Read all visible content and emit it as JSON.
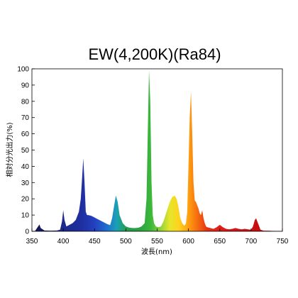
{
  "chart_data": {
    "type": "area",
    "title": "EW(4,200K)(Ra84)",
    "xlabel": "波長(nm)",
    "ylabel": "相対分光出力(%)",
    "xlim": [
      350,
      750
    ],
    "ylim": [
      0,
      100
    ],
    "xticks": [
      350,
      400,
      450,
      500,
      550,
      600,
      650,
      700,
      750
    ],
    "yticks": [
      0,
      10,
      20,
      30,
      40,
      50,
      60,
      70,
      80,
      90,
      100
    ],
    "grid": false,
    "color_mode": "wavelength-spectrum",
    "x": [
      350,
      355,
      359,
      362,
      364,
      370,
      380,
      390,
      395,
      398,
      400,
      402,
      405,
      410,
      415,
      420,
      425,
      428,
      430,
      432,
      434,
      436,
      438,
      440,
      445,
      450,
      455,
      460,
      465,
      470,
      475,
      478,
      481,
      484,
      487,
      490,
      495,
      500,
      505,
      510,
      515,
      520,
      525,
      530,
      533,
      535,
      537,
      539,
      541,
      543,
      545,
      548,
      552,
      556,
      560,
      565,
      570,
      574,
      578,
      581,
      584,
      587,
      590,
      592,
      594,
      596,
      598,
      600,
      602,
      604,
      606,
      608,
      610,
      612,
      614,
      616,
      618,
      620,
      622,
      624,
      626,
      628,
      630,
      635,
      640,
      645,
      650,
      655,
      660,
      665,
      670,
      675,
      680,
      685,
      690,
      695,
      700,
      703,
      706,
      708,
      710,
      715,
      720,
      730,
      740,
      750
    ],
    "y": [
      0,
      0.2,
      2.5,
      4.2,
      2,
      0.5,
      0.4,
      0.5,
      1,
      6,
      13,
      7,
      3,
      4,
      5,
      7,
      12,
      20,
      32,
      45,
      30,
      12,
      10,
      10,
      9.5,
      8.5,
      7.5,
      6.5,
      5.5,
      4.5,
      3.8,
      8,
      15,
      22,
      18,
      10,
      5,
      3,
      2.3,
      2,
      2,
      2.2,
      3,
      5,
      20,
      60,
      99,
      80,
      30,
      10,
      5,
      3,
      2.5,
      3,
      6,
      12,
      18,
      21,
      22,
      20,
      15,
      8,
      5,
      4,
      3.5,
      5,
      12,
      40,
      70,
      86,
      60,
      30,
      19,
      18,
      16,
      14,
      11,
      10,
      13,
      8,
      5,
      3,
      2.5,
      2,
      1.5,
      2.5,
      4,
      2.5,
      1.5,
      1.2,
      1.5,
      2,
      1.5,
      1.2,
      1.5,
      1.2,
      1,
      3,
      7,
      8,
      6,
      1,
      0.4,
      0.3,
      0.2,
      0.2
    ]
  }
}
